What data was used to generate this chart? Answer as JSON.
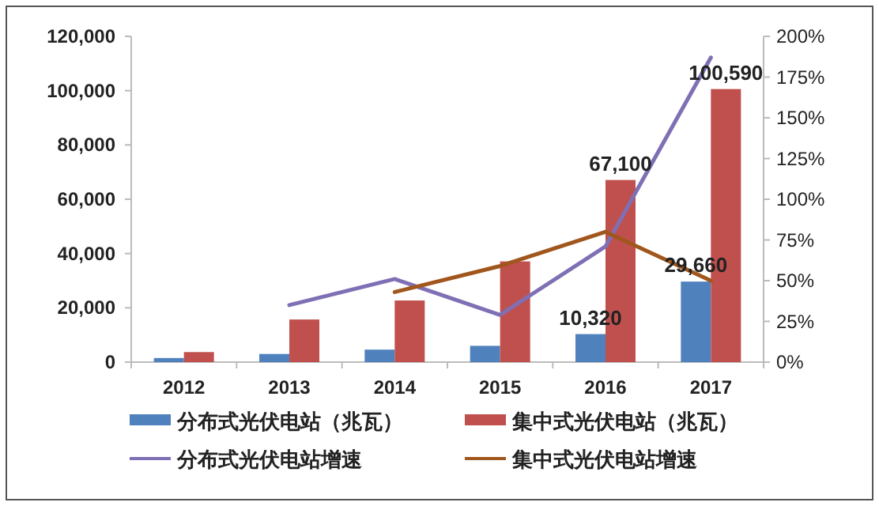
{
  "chart_data": {
    "type": "bar",
    "categories": [
      "2012",
      "2013",
      "2014",
      "2015",
      "2016",
      "2017"
    ],
    "series": [
      {
        "name": "分布式光伏电站（兆瓦）",
        "color": "#4f81bd",
        "values": [
          1500,
          3000,
          4600,
          6000,
          10320,
          29660
        ],
        "value_labels": [
          null,
          null,
          null,
          null,
          "10,320",
          "29,660"
        ]
      },
      {
        "name": "集中式光伏电站（兆瓦）",
        "color": "#c0504d",
        "values": [
          3700,
          15700,
          22700,
          37100,
          67100,
          100590
        ],
        "value_labels": [
          null,
          null,
          null,
          null,
          "67,100",
          "100,590"
        ]
      },
      {
        "name": "分布式光伏电站增速",
        "type": "line",
        "axis": "y2",
        "color": "#7f6fb5",
        "values": [
          null,
          35,
          51,
          29,
          71,
          187
        ]
      },
      {
        "name": "集中式光伏电站增速",
        "type": "line",
        "axis": "y2",
        "color": "#a0561c",
        "values": [
          null,
          null,
          43,
          59,
          80,
          50
        ]
      }
    ],
    "ylim": [
      0,
      120000
    ],
    "yticks": [
      {
        "value": 0,
        "label": "0"
      },
      {
        "value": 20000,
        "label": "20,000"
      },
      {
        "value": 40000,
        "label": "40,000"
      },
      {
        "value": 60000,
        "label": "60,000"
      },
      {
        "value": 80000,
        "label": "80,000"
      },
      {
        "value": 100000,
        "label": "100,000"
      },
      {
        "value": 120000,
        "label": "120,000"
      }
    ],
    "y2lim": [
      0,
      200
    ],
    "y2ticks": [
      {
        "value": 0,
        "label": "0%"
      },
      {
        "value": 25,
        "label": "25%"
      },
      {
        "value": 50,
        "label": "50%"
      },
      {
        "value": 75,
        "label": "75%"
      },
      {
        "value": 100,
        "label": "100%"
      },
      {
        "value": 125,
        "label": "125%"
      },
      {
        "value": 150,
        "label": "150%"
      },
      {
        "value": 175,
        "label": "175%"
      },
      {
        "value": 200,
        "label": "200%"
      }
    ],
    "legend": "bottom"
  }
}
